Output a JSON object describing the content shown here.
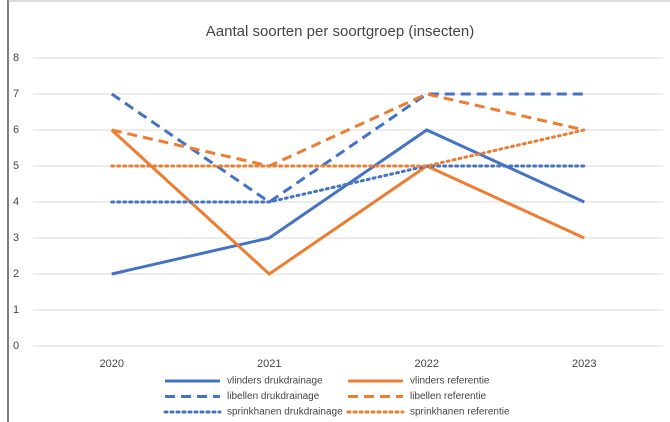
{
  "chart_data": {
    "type": "line",
    "title": "Aantal soorten per soortgroep (insecten)",
    "categories": [
      "2020",
      "2021",
      "2022",
      "2023"
    ],
    "series": [
      {
        "name": "vlinders drukdrainage",
        "color": "#4472c4",
        "style": "solid",
        "values": [
          2,
          3,
          6,
          4
        ]
      },
      {
        "name": "vlinders referentie",
        "color": "#ed7d31",
        "style": "solid",
        "values": [
          6,
          2,
          5,
          3
        ]
      },
      {
        "name": "libellen drukdrainage",
        "color": "#4472c4",
        "style": "dashed",
        "values": [
          7,
          4,
          7,
          7
        ]
      },
      {
        "name": "libellen referentie",
        "color": "#ed7d31",
        "style": "dashed",
        "values": [
          6,
          5,
          7,
          6
        ]
      },
      {
        "name": "sprinkhanen drukdrainage",
        "color": "#4472c4",
        "style": "dotted",
        "values": [
          4,
          4,
          5,
          5
        ]
      },
      {
        "name": "sprinkhanen referentie",
        "color": "#ed7d31",
        "style": "dotted",
        "values": [
          5,
          5,
          5,
          6
        ]
      }
    ],
    "ylim": [
      0,
      8
    ],
    "yticks": [
      0,
      1,
      2,
      3,
      4,
      5,
      6,
      7,
      8
    ],
    "grid": true,
    "legend": "bottom"
  }
}
